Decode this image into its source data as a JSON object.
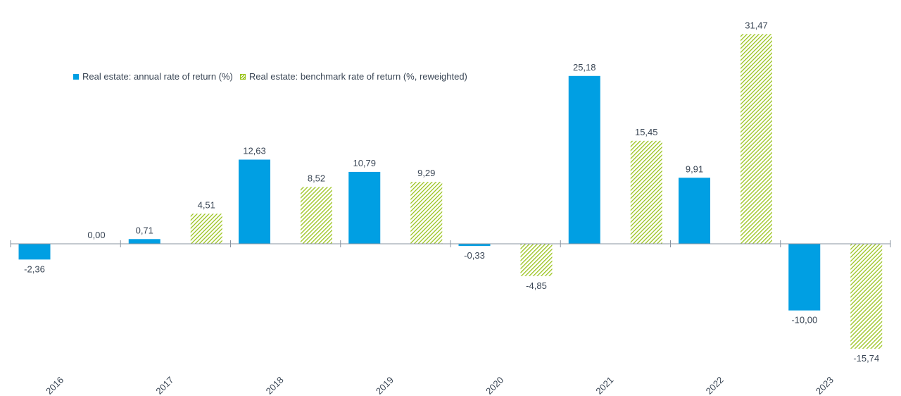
{
  "chart_data": {
    "type": "bar",
    "categories": [
      "2016",
      "2017",
      "2018",
      "2019",
      "2020",
      "2021",
      "2022",
      "2023"
    ],
    "series": [
      {
        "name": "Real estate: annual rate of return (%)",
        "values": [
          -2.36,
          0.71,
          12.63,
          10.79,
          -0.33,
          25.18,
          9.91,
          -10.0
        ],
        "labels": [
          "-2,36",
          "0,71",
          "12,63",
          "10,79",
          "-0,33",
          "25,18",
          "9,91",
          "-10,00"
        ],
        "color": "#009fe3"
      },
      {
        "name": "Real estate: benchmark rate of return (%, reweighted)",
        "values": [
          0.0,
          4.51,
          8.52,
          9.29,
          -4.85,
          15.45,
          31.47,
          -15.74
        ],
        "labels": [
          "0,00",
          "4,51",
          "8,52",
          "9,29",
          "-4,85",
          "15,45",
          "31,47",
          "-15,74"
        ],
        "color": "#9ac31c",
        "pattern": "hatched"
      }
    ],
    "ylim": [
      -20,
      33
    ],
    "grid": false,
    "legend_position": "top-left"
  }
}
